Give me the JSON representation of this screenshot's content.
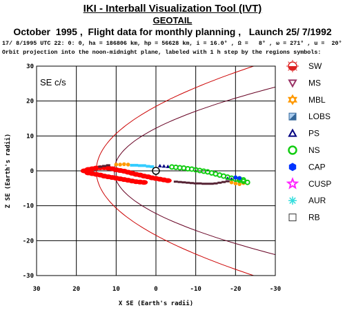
{
  "header": {
    "title": "IKI - Interball Visualization Tool (IVT)",
    "subtitle": "GEOTAIL",
    "info": "October  1995 ,  Flight data for monthly planning ,   Launch 25/ 7/1992",
    "orbit_line": "17/ 8/1995 UTC 22: 0: 0, ha = 186806 km, hp = 56628 km, i = 16.0° , Ω =   8° , ω = 271° , u =  20°",
    "note_line": "Orbit projection into the noon-midnight plane, labeled with 1 h step by the regions symbols:"
  },
  "chart_data": {
    "type": "scatter",
    "frame_label": "SE c/s",
    "xlabel": "X SE (Earth's radii)",
    "ylabel": "Z SE (Earth's radii)",
    "xlim": [
      30,
      -30
    ],
    "ylim": [
      -30,
      30
    ],
    "x_ticks": [
      30,
      20,
      10,
      0,
      -10,
      -20,
      -30
    ],
    "y_ticks": [
      30,
      20,
      10,
      0,
      -10,
      -20,
      -30
    ],
    "grid": true,
    "legend_position": "right",
    "legend": [
      {
        "key": "SW",
        "label": "SW",
        "color": "#dd2020",
        "icon": "half-filled-sun-icon"
      },
      {
        "key": "MS",
        "label": "MS",
        "color": "#993366",
        "icon": "down-triangle-icon"
      },
      {
        "key": "MBL",
        "label": "MBL",
        "color": "#ff9900",
        "icon": "star-of-david-icon"
      },
      {
        "key": "LOBS",
        "label": "LOBS",
        "color": "#336699",
        "icon": "split-square-icon"
      },
      {
        "key": "PS",
        "label": "PS",
        "color": "#000080",
        "icon": "up-triangle-icon"
      },
      {
        "key": "NS",
        "label": "NS",
        "color": "#11cc11",
        "icon": "ring-icon"
      },
      {
        "key": "CAP",
        "label": "CAP",
        "color": "#0033ff",
        "icon": "filled-hexagon-icon"
      },
      {
        "key": "CUSP",
        "label": "CUSP",
        "color": "#ff22ff",
        "icon": "star-icon"
      },
      {
        "key": "AUR",
        "label": "AUR",
        "color": "#33dddd",
        "icon": "asterisk-icon"
      },
      {
        "key": "RB",
        "label": "RB",
        "color": "#333333",
        "icon": "square-icon"
      }
    ],
    "boundaries": [
      {
        "name": "bow shock",
        "color": "#cc0000",
        "nose_x": 15,
        "flare_y_at_x_minus30": 32
      },
      {
        "name": "magnetopause",
        "color": "#660022",
        "nose_x": 10.5,
        "flare_y_at_x_minus30": 24
      }
    ],
    "earth": {
      "x": 0,
      "z": 0
    },
    "series": [
      {
        "region": "SW",
        "color": "#ff0000",
        "points": [
          [
            18,
            0
          ],
          [
            17,
            0.4
          ],
          [
            16,
            0.6
          ],
          [
            15,
            0.8
          ],
          [
            14,
            0.9
          ],
          [
            13,
            0.9
          ],
          [
            12,
            0.8
          ],
          [
            11,
            0.6
          ],
          [
            10,
            0.3
          ],
          [
            9,
            0.1
          ],
          [
            8,
            -0.1
          ],
          [
            7,
            -0.4
          ],
          [
            6,
            -0.7
          ],
          [
            5,
            -1.0
          ],
          [
            4,
            -1.2
          ],
          [
            3,
            -1.5
          ],
          [
            2,
            -1.7
          ],
          [
            1,
            -2.0
          ],
          [
            0,
            -2.2
          ],
          [
            -1,
            -2.4
          ],
          [
            -2,
            -2.6
          ],
          [
            -3,
            -2.8
          ],
          [
            17,
            -0.6
          ],
          [
            16,
            -0.8
          ],
          [
            15,
            -1.0
          ],
          [
            14,
            -1.2
          ],
          [
            13,
            -1.5
          ],
          [
            12,
            -1.7
          ],
          [
            11,
            -1.9
          ],
          [
            10,
            -2.1
          ],
          [
            9,
            -2.3
          ],
          [
            8,
            -2.5
          ],
          [
            7,
            -2.7
          ],
          [
            6,
            -2.9
          ],
          [
            5,
            -3.1
          ],
          [
            4,
            -3.2
          ],
          [
            3,
            -3.3
          ]
        ]
      },
      {
        "region": "MS",
        "color": "#552233",
        "points": [
          [
            -5,
            -3.1
          ],
          [
            -6,
            -3.2
          ],
          [
            -7,
            -3.3
          ],
          [
            -8,
            -3.4
          ],
          [
            -9,
            -3.5
          ],
          [
            -10,
            -3.6
          ],
          [
            -11,
            -3.6
          ],
          [
            -12,
            -3.7
          ],
          [
            -13,
            -3.7
          ],
          [
            -14,
            -3.7
          ],
          [
            -15,
            -3.6
          ],
          [
            -16,
            -3.4
          ],
          [
            -17,
            -3.2
          ],
          [
            -18,
            -3.0
          ],
          [
            12,
            1.6
          ],
          [
            13,
            1.4
          ],
          [
            14,
            1.2
          ]
        ]
      },
      {
        "region": "MBL",
        "color": "#ff9900",
        "points": [
          [
            10,
            1.8
          ],
          [
            9,
            1.8
          ],
          [
            8,
            1.9
          ],
          [
            7,
            1.8
          ],
          [
            -19,
            -3.3
          ],
          [
            -20,
            -3.6
          ],
          [
            -21,
            -3.8
          ],
          [
            -22,
            -3.5
          ]
        ]
      },
      {
        "region": "AUR",
        "color": "#33ccff",
        "points": [
          [
            6,
            1.6
          ],
          [
            5,
            1.6
          ],
          [
            4,
            1.5
          ],
          [
            3,
            1.5
          ],
          [
            2,
            1.3
          ],
          [
            1,
            1.2
          ]
        ]
      },
      {
        "region": "PS",
        "color": "#000080",
        "points": [
          [
            -1,
            1.4
          ],
          [
            -2,
            1.3
          ],
          [
            -3,
            1.2
          ],
          [
            -18,
            -2.2
          ],
          [
            -19,
            -2.4
          ]
        ]
      },
      {
        "region": "NS",
        "color": "#11cc11",
        "points": [
          [
            -4,
            1.1
          ],
          [
            -5,
            1.0
          ],
          [
            -6,
            0.9
          ],
          [
            -7,
            0.8
          ],
          [
            -8,
            0.6
          ],
          [
            -9,
            0.5
          ],
          [
            -10,
            0.3
          ],
          [
            -11,
            0.1
          ],
          [
            -12,
            -0.1
          ],
          [
            -13,
            -0.3
          ],
          [
            -14,
            -0.6
          ],
          [
            -15,
            -0.9
          ],
          [
            -16,
            -1.2
          ],
          [
            -17,
            -1.5
          ],
          [
            -18,
            -1.8
          ],
          [
            -19,
            -2.1
          ],
          [
            -20,
            -2.4
          ],
          [
            -21,
            -2.7
          ],
          [
            -22,
            -3.0
          ],
          [
            -23,
            -3.3
          ],
          [
            -22,
            -2.6
          ],
          [
            -21,
            -2.3
          ]
        ]
      },
      {
        "region": "CAP",
        "color": "#0033ff",
        "points": [
          [
            -20,
            -1.9
          ],
          [
            -21,
            -2.1
          ]
        ]
      }
    ]
  }
}
